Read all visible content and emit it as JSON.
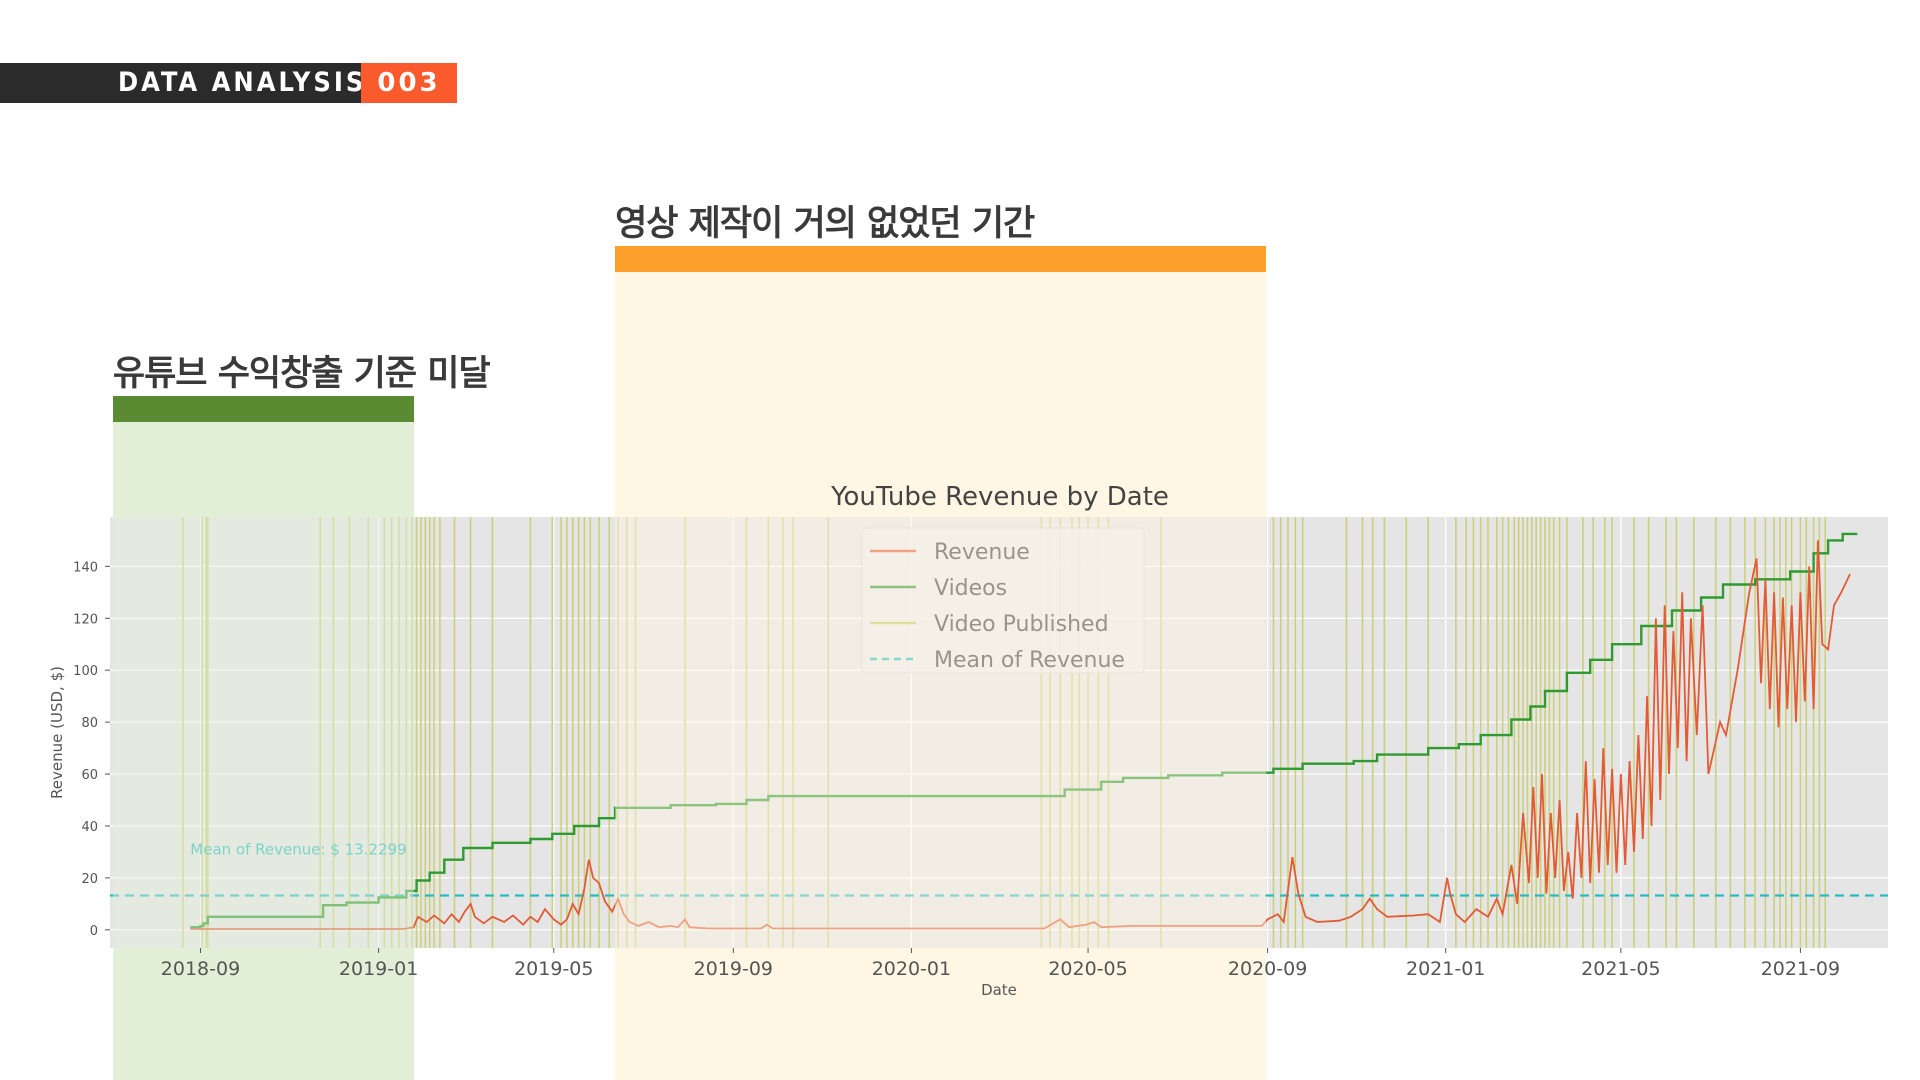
{
  "header": {
    "title": "DATA ANALYSIS",
    "number": "003"
  },
  "annotations": [
    {
      "label": "유튜브 수익창출 기준 미달",
      "color": "#5a8b32",
      "fill": "#e2efd7",
      "date_start": "2018-07-03",
      "date_end": "2019-01-25"
    },
    {
      "label": "영상 제작이 거의 없었던 기간",
      "color": "#fda02b",
      "fill": "#fff6e3",
      "date_start": "2019-06-12",
      "date_end": "2020-08-31"
    }
  ],
  "chart_data": {
    "type": "line",
    "title": "YouTube Revenue by Date",
    "xlabel": "Date",
    "ylabel": "Revenue (USD, $)",
    "x_ticks": [
      "2018-09",
      "2019-01",
      "2019-05",
      "2019-09",
      "2020-01",
      "2020-05",
      "2020-09",
      "2021-01",
      "2021-05",
      "2021-09"
    ],
    "y_ticks": [
      0,
      20,
      40,
      60,
      80,
      100,
      120,
      140
    ],
    "xlim": [
      "2018-07-01",
      "2021-10-31"
    ],
    "ylim": [
      -7,
      159
    ],
    "grid": true,
    "legend_position": "upper-center",
    "legend": [
      "Revenue",
      "Videos",
      "Video Published",
      "Mean of Revenue"
    ],
    "mean_label": "Mean of Revenue: $ 13.2299",
    "colors": {
      "revenue": "#e35b35",
      "videos": "#2f9a2f",
      "published": "#c8cc6a",
      "mean": "#27bcc4",
      "plot_bg": "#e5e5e5"
    },
    "mean_value": 13.2299,
    "series": [
      {
        "name": "Videos",
        "points": [
          [
            "2018-08-25",
            1
          ],
          [
            "2018-09-01",
            1.5
          ],
          [
            "2018-09-03",
            2.5
          ],
          [
            "2018-09-06",
            5
          ],
          [
            "2018-11-22",
            5
          ],
          [
            "2018-11-24",
            9.5
          ],
          [
            "2018-12-10",
            10.5
          ],
          [
            "2019-01-01",
            12.5
          ],
          [
            "2019-01-20",
            15
          ],
          [
            "2019-01-27",
            19
          ],
          [
            "2019-02-05",
            22
          ],
          [
            "2019-02-15",
            27
          ],
          [
            "2019-02-28",
            31.5
          ],
          [
            "2019-03-20",
            33.5
          ],
          [
            "2019-04-15",
            35
          ],
          [
            "2019-04-30",
            37
          ],
          [
            "2019-05-15",
            40
          ],
          [
            "2019-06-01",
            43
          ],
          [
            "2019-06-12",
            47
          ],
          [
            "2019-07-20",
            48
          ],
          [
            "2019-08-20",
            48.5
          ],
          [
            "2019-09-10",
            50
          ],
          [
            "2019-09-25",
            51.5
          ],
          [
            "2019-12-01",
            51.5
          ],
          [
            "2020-04-01",
            51.5
          ],
          [
            "2020-04-15",
            54
          ],
          [
            "2020-05-10",
            57
          ],
          [
            "2020-05-25",
            58.5
          ],
          [
            "2020-06-25",
            59.5
          ],
          [
            "2020-08-01",
            60.5
          ],
          [
            "2020-09-05",
            62
          ],
          [
            "2020-09-25",
            64
          ],
          [
            "2020-10-30",
            65
          ],
          [
            "2020-11-15",
            67.5
          ],
          [
            "2020-12-20",
            70
          ],
          [
            "2021-01-10",
            71.5
          ],
          [
            "2021-01-25",
            75
          ],
          [
            "2021-02-15",
            81
          ],
          [
            "2021-02-28",
            86
          ],
          [
            "2021-03-10",
            92
          ],
          [
            "2021-03-25",
            99
          ],
          [
            "2021-04-10",
            104
          ],
          [
            "2021-04-25",
            110
          ],
          [
            "2021-05-15",
            117
          ],
          [
            "2021-06-05",
            123
          ],
          [
            "2021-06-25",
            128
          ],
          [
            "2021-07-10",
            133
          ],
          [
            "2021-08-01",
            135
          ],
          [
            "2021-08-25",
            138
          ],
          [
            "2021-09-10",
            145
          ],
          [
            "2021-09-20",
            150
          ],
          [
            "2021-09-30",
            152.5
          ],
          [
            "2021-10-10",
            152.5
          ]
        ]
      },
      {
        "name": "Revenue",
        "points": [
          [
            "2018-08-25",
            0.3
          ],
          [
            "2019-01-18",
            0.3
          ],
          [
            "2019-01-25",
            1
          ],
          [
            "2019-01-28",
            5
          ],
          [
            "2019-02-03",
            3
          ],
          [
            "2019-02-08",
            5.5
          ],
          [
            "2019-02-15",
            2.5
          ],
          [
            "2019-02-20",
            6
          ],
          [
            "2019-02-25",
            3
          ],
          [
            "2019-03-01",
            7
          ],
          [
            "2019-03-05",
            10
          ],
          [
            "2019-03-08",
            5
          ],
          [
            "2019-03-14",
            2.5
          ],
          [
            "2019-03-20",
            5
          ],
          [
            "2019-03-28",
            3
          ],
          [
            "2019-04-03",
            5.5
          ],
          [
            "2019-04-10",
            2
          ],
          [
            "2019-04-15",
            5
          ],
          [
            "2019-04-20",
            3
          ],
          [
            "2019-04-25",
            8
          ],
          [
            "2019-05-01",
            4
          ],
          [
            "2019-05-06",
            2
          ],
          [
            "2019-05-10",
            4
          ],
          [
            "2019-05-14",
            10
          ],
          [
            "2019-05-18",
            6
          ],
          [
            "2019-05-22",
            16
          ],
          [
            "2019-05-25",
            27
          ],
          [
            "2019-05-28",
            20
          ],
          [
            "2019-06-01",
            18
          ],
          [
            "2019-06-05",
            11
          ],
          [
            "2019-06-10",
            7
          ],
          [
            "2019-06-14",
            12
          ],
          [
            "2019-06-18",
            6
          ],
          [
            "2019-06-22",
            3
          ],
          [
            "2019-06-28",
            1.5
          ],
          [
            "2019-07-05",
            3
          ],
          [
            "2019-07-12",
            1
          ],
          [
            "2019-07-20",
            1.5
          ],
          [
            "2019-07-25",
            1
          ],
          [
            "2019-07-30",
            4
          ],
          [
            "2019-08-02",
            1
          ],
          [
            "2019-08-15",
            0.5
          ],
          [
            "2019-09-20",
            0.5
          ],
          [
            "2019-09-24",
            2
          ],
          [
            "2019-09-28",
            0.5
          ],
          [
            "2020-04-01",
            0.5
          ],
          [
            "2020-04-12",
            4
          ],
          [
            "2020-04-18",
            1
          ],
          [
            "2020-04-30",
            2
          ],
          [
            "2020-05-05",
            3
          ],
          [
            "2020-05-10",
            1
          ],
          [
            "2020-06-01",
            1.5
          ],
          [
            "2020-08-28",
            1.5
          ],
          [
            "2020-09-01",
            4
          ],
          [
            "2020-09-08",
            6
          ],
          [
            "2020-09-12",
            3
          ],
          [
            "2020-09-18",
            28
          ],
          [
            "2020-09-22",
            14
          ],
          [
            "2020-09-27",
            5
          ],
          [
            "2020-10-05",
            3
          ],
          [
            "2020-10-20",
            3.5
          ],
          [
            "2020-10-28",
            5
          ],
          [
            "2020-11-05",
            8
          ],
          [
            "2020-11-10",
            12
          ],
          [
            "2020-11-15",
            8
          ],
          [
            "2020-11-22",
            5
          ],
          [
            "2020-12-10",
            5.5
          ],
          [
            "2020-12-20",
            6
          ],
          [
            "2020-12-28",
            3
          ],
          [
            "2021-01-02",
            20
          ],
          [
            "2021-01-04",
            14
          ],
          [
            "2021-01-08",
            6
          ],
          [
            "2021-01-14",
            3
          ],
          [
            "2021-01-22",
            8
          ],
          [
            "2021-01-30",
            5
          ],
          [
            "2021-02-05",
            12
          ],
          [
            "2021-02-09",
            6
          ],
          [
            "2021-02-15",
            25
          ],
          [
            "2021-02-19",
            10
          ],
          [
            "2021-02-23",
            45
          ],
          [
            "2021-02-27",
            18
          ],
          [
            "2021-03-02",
            55
          ],
          [
            "2021-03-05",
            20
          ],
          [
            "2021-03-08",
            60
          ],
          [
            "2021-03-11",
            14
          ],
          [
            "2021-03-14",
            45
          ],
          [
            "2021-03-17",
            20
          ],
          [
            "2021-03-20",
            50
          ],
          [
            "2021-03-23",
            15
          ],
          [
            "2021-03-26",
            30
          ],
          [
            "2021-03-29",
            12
          ],
          [
            "2021-04-01",
            45
          ],
          [
            "2021-04-04",
            20
          ],
          [
            "2021-04-07",
            65
          ],
          [
            "2021-04-10",
            18
          ],
          [
            "2021-04-13",
            58
          ],
          [
            "2021-04-16",
            22
          ],
          [
            "2021-04-19",
            70
          ],
          [
            "2021-04-22",
            25
          ],
          [
            "2021-04-25",
            62
          ],
          [
            "2021-04-28",
            22
          ],
          [
            "2021-05-01",
            60
          ],
          [
            "2021-05-04",
            25
          ],
          [
            "2021-05-07",
            65
          ],
          [
            "2021-05-10",
            30
          ],
          [
            "2021-05-13",
            75
          ],
          [
            "2021-05-16",
            35
          ],
          [
            "2021-05-19",
            90
          ],
          [
            "2021-05-22",
            40
          ],
          [
            "2021-05-25",
            120
          ],
          [
            "2021-05-28",
            50
          ],
          [
            "2021-05-31",
            125
          ],
          [
            "2021-06-03",
            60
          ],
          [
            "2021-06-06",
            115
          ],
          [
            "2021-06-09",
            70
          ],
          [
            "2021-06-12",
            130
          ],
          [
            "2021-06-15",
            65
          ],
          [
            "2021-06-18",
            120
          ],
          [
            "2021-06-22",
            75
          ],
          [
            "2021-06-26",
            125
          ],
          [
            "2021-06-30",
            60
          ],
          [
            "2021-07-04",
            70
          ],
          [
            "2021-07-08",
            80
          ],
          [
            "2021-07-12",
            75
          ],
          [
            "2021-07-20",
            100
          ],
          [
            "2021-07-28",
            130
          ],
          [
            "2021-08-02",
            143
          ],
          [
            "2021-08-05",
            95
          ],
          [
            "2021-08-08",
            135
          ],
          [
            "2021-08-11",
            85
          ],
          [
            "2021-08-14",
            130
          ],
          [
            "2021-08-17",
            78
          ],
          [
            "2021-08-20",
            128
          ],
          [
            "2021-08-23",
            85
          ],
          [
            "2021-08-26",
            125
          ],
          [
            "2021-08-29",
            80
          ],
          [
            "2021-09-01",
            130
          ],
          [
            "2021-09-04",
            88
          ],
          [
            "2021-09-07",
            140
          ],
          [
            "2021-09-10",
            85
          ],
          [
            "2021-09-13",
            150
          ],
          [
            "2021-09-16",
            110
          ],
          [
            "2021-09-20",
            108
          ],
          [
            "2021-09-24",
            125
          ],
          [
            "2021-09-29",
            130
          ],
          [
            "2021-10-05",
            137
          ]
        ]
      }
    ],
    "published_dates": [
      "2018-08-20",
      "2018-09-02",
      "2018-09-05",
      "2018-09-06",
      "2018-11-22",
      "2018-12-01",
      "2018-12-12",
      "2018-12-25",
      "2019-01-05",
      "2019-01-10",
      "2019-01-15",
      "2019-01-20",
      "2019-01-24",
      "2019-01-27",
      "2019-01-30",
      "2019-02-02",
      "2019-02-05",
      "2019-02-08",
      "2019-02-12",
      "2019-02-22",
      "2019-03-05",
      "2019-03-20",
      "2019-04-15",
      "2019-04-30",
      "2019-05-06",
      "2019-05-10",
      "2019-05-14",
      "2019-05-18",
      "2019-05-22",
      "2019-05-26",
      "2019-06-01",
      "2019-06-08",
      "2019-06-14",
      "2019-06-20",
      "2019-06-26",
      "2019-07-30",
      "2019-09-10",
      "2019-09-25",
      "2019-10-05",
      "2019-10-12",
      "2019-11-05",
      "2020-03-30",
      "2020-04-05",
      "2020-04-12",
      "2020-04-20",
      "2020-04-25",
      "2020-05-01",
      "2020-05-08",
      "2020-05-15",
      "2020-06-20",
      "2020-09-05",
      "2020-09-10",
      "2020-09-15",
      "2020-09-20",
      "2020-09-25",
      "2020-10-25",
      "2020-11-05",
      "2020-11-12",
      "2020-11-20",
      "2020-12-05",
      "2020-12-20",
      "2021-01-08",
      "2021-01-15",
      "2021-01-20",
      "2021-01-25",
      "2021-01-30",
      "2021-02-05",
      "2021-02-09",
      "2021-02-13",
      "2021-02-17",
      "2021-02-20",
      "2021-02-23",
      "2021-02-26",
      "2021-03-01",
      "2021-03-04",
      "2021-03-07",
      "2021-03-10",
      "2021-03-13",
      "2021-03-16",
      "2021-03-20",
      "2021-03-25",
      "2021-04-05",
      "2021-04-12",
      "2021-04-20",
      "2021-04-25",
      "2021-05-10",
      "2021-05-20",
      "2021-06-01",
      "2021-06-08",
      "2021-06-20",
      "2021-07-05",
      "2021-07-15",
      "2021-07-25",
      "2021-08-01",
      "2021-08-08",
      "2021-08-14",
      "2021-08-18",
      "2021-08-22",
      "2021-08-26",
      "2021-09-01",
      "2021-09-05",
      "2021-09-10",
      "2021-09-14",
      "2021-09-18"
    ]
  }
}
